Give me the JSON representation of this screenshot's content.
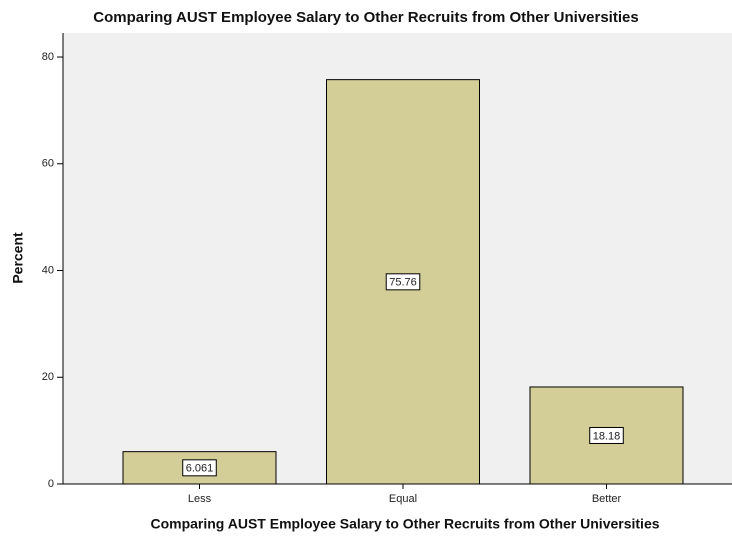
{
  "chart_data": {
    "type": "bar",
    "title": "Comparing AUST Employee Salary to Other Recruits from Other Universities",
    "x_label": "Comparing AUST Employee Salary to Other Recruits from Other Universities",
    "y_label": "Percent",
    "categories": [
      "Less",
      "Equal",
      "Better"
    ],
    "values": [
      6.061,
      75.76,
      18.18
    ],
    "color": "#d3ce98",
    "ylim": [
      0,
      84.5
    ],
    "yticks": [
      0,
      20,
      40,
      60,
      80
    ],
    "grid": false
  }
}
